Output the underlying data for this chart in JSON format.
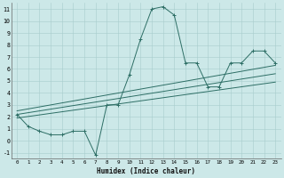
{
  "xlabel": "Humidex (Indice chaleur)",
  "bg_color": "#cce8e8",
  "line_color": "#2d6e65",
  "xlim": [
    -0.5,
    23.5
  ],
  "ylim": [
    -1.5,
    11.5
  ],
  "xticks": [
    0,
    1,
    2,
    3,
    4,
    5,
    6,
    7,
    8,
    9,
    10,
    11,
    12,
    13,
    14,
    15,
    16,
    17,
    18,
    19,
    20,
    21,
    22,
    23
  ],
  "yticks": [
    -1,
    0,
    1,
    2,
    3,
    4,
    5,
    6,
    7,
    8,
    9,
    10,
    11
  ],
  "line1_x": [
    0,
    1,
    2,
    3,
    4,
    5,
    6,
    7,
    8,
    9,
    10,
    11,
    12,
    13,
    14,
    15,
    16,
    17,
    18,
    19,
    20,
    21,
    22,
    23
  ],
  "line1_y": [
    2.2,
    1.2,
    0.8,
    0.5,
    0.5,
    0.8,
    0.8,
    -1.2,
    3.0,
    3.0,
    5.5,
    8.5,
    11.0,
    11.2,
    10.5,
    6.5,
    6.5,
    4.5,
    4.5,
    6.5,
    6.5,
    7.5,
    7.5,
    6.5
  ],
  "line2_x": [
    0,
    23
  ],
  "line2_y": [
    2.5,
    6.3
  ],
  "line3_x": [
    0,
    23
  ],
  "line3_y": [
    2.2,
    5.6
  ],
  "line4_x": [
    0,
    23
  ],
  "line4_y": [
    1.9,
    4.9
  ]
}
